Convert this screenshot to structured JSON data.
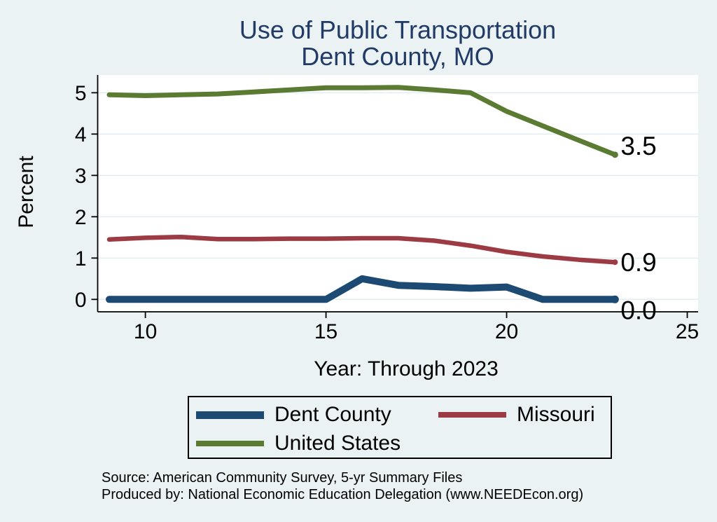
{
  "chart_data": {
    "type": "line",
    "title": "Use of Public Transportation",
    "subtitle": "Dent County, MO",
    "xlabel": "Year: Through 2023",
    "ylabel": "Percent",
    "x": [
      9,
      10,
      11,
      12,
      13,
      14,
      15,
      16,
      17,
      18,
      19,
      20,
      21,
      22,
      23
    ],
    "xticks": [
      10,
      15,
      20,
      25
    ],
    "yticks": [
      0,
      1,
      2,
      3,
      4,
      5
    ],
    "xlim": [
      8.68,
      25.3
    ],
    "ylim": [
      -0.3,
      5.43
    ],
    "grid": true,
    "legend_position": "bottom",
    "background_color": "#eaf2f3",
    "plot_background_color": "#ffffff",
    "grid_color": "#e2edf0",
    "axis_color": "#000000",
    "title_color": "#213a66",
    "series": [
      {
        "name": "Dent County",
        "color": "#1c4a72",
        "end_label": "0.0",
        "values": [
          0.0,
          0.0,
          0.0,
          0.0,
          0.0,
          0.0,
          0.0,
          0.5,
          0.34,
          0.31,
          0.27,
          0.3,
          0.0,
          0.0,
          0.0
        ]
      },
      {
        "name": "Missouri",
        "color": "#9d3b44",
        "end_label": "0.9",
        "values": [
          1.45,
          1.49,
          1.51,
          1.46,
          1.46,
          1.47,
          1.47,
          1.48,
          1.48,
          1.42,
          1.3,
          1.15,
          1.04,
          0.96,
          0.9
        ]
      },
      {
        "name": "United States",
        "color": "#5b7b33",
        "end_label": "3.5",
        "values": [
          4.95,
          4.93,
          4.95,
          4.97,
          5.02,
          5.07,
          5.12,
          5.12,
          5.13,
          5.07,
          5.0,
          4.55,
          4.2,
          3.85,
          3.5
        ]
      }
    ]
  },
  "footer": {
    "line1": "Source: American Community Survey, 5-yr Summary Files",
    "line2": "Produced by: National Economic Education Delegation (www.NEEDEcon.org)"
  }
}
